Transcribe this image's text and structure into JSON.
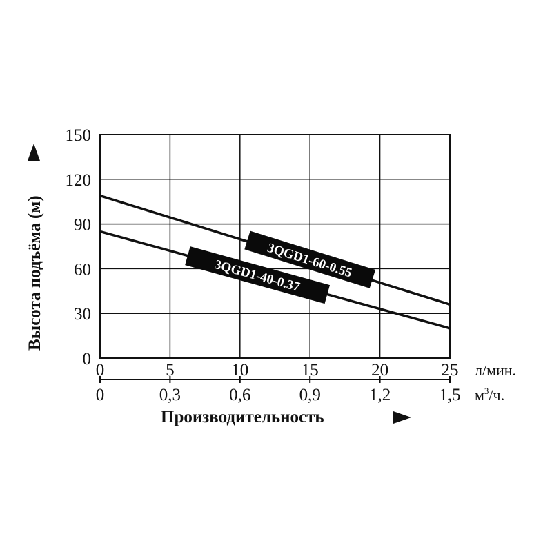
{
  "chart_data": {
    "type": "line",
    "xlabel": "Производительность",
    "ylabel": "Высота подъёма (м)",
    "x_unit": "л/мин.",
    "x2_unit_base": "м",
    "x2_unit_sup": "3",
    "x2_unit_tail": "/ч.",
    "xlim": [
      0,
      25
    ],
    "ylim": [
      0,
      150
    ],
    "x_ticks": [
      "0",
      "5",
      "10",
      "15",
      "20",
      "25"
    ],
    "x2_ticks": [
      "0",
      "0,3",
      "0,6",
      "0,9",
      "1,2",
      "1,5"
    ],
    "y_ticks": [
      "0",
      "30",
      "60",
      "90",
      "120",
      "150"
    ],
    "grid": true,
    "series": [
      {
        "name": "3QGD1-60-0.55",
        "x": [
          0,
          25
        ],
        "y": [
          109,
          36
        ]
      },
      {
        "name": "3QGD1-40-0.37",
        "x": [
          0,
          25
        ],
        "y": [
          85,
          20
        ]
      }
    ]
  }
}
